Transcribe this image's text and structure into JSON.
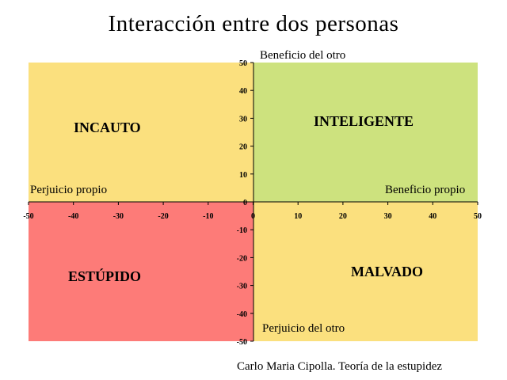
{
  "title": "Interacción entre dos personas",
  "axes": {
    "x_negative_label": "Perjuicio propio",
    "x_positive_label": "Beneficio propio",
    "y_positive_label": "Beneficio del otro",
    "y_negative_label": "Perjuicio del otro",
    "x_ticks": [
      -50,
      -40,
      -30,
      -20,
      -10,
      0,
      10,
      20,
      30,
      40,
      50
    ],
    "y_ticks": [
      50,
      40,
      30,
      20,
      10,
      0,
      -10,
      -20,
      -30,
      -40,
      -50
    ],
    "range": [
      -50,
      50
    ]
  },
  "quadrants": {
    "top_left": {
      "label": "INCAUTO",
      "color": "#fbe07e"
    },
    "top_right": {
      "label": "INTELIGENTE",
      "color": "#cde27e"
    },
    "bottom_left": {
      "label": "ESTÚPIDO",
      "color": "#fd7b78"
    },
    "bottom_right": {
      "label": "MALVADO",
      "color": "#fbe07e"
    }
  },
  "credit": "Carlo Maria Cipolla. Teoría de la estupidez"
}
